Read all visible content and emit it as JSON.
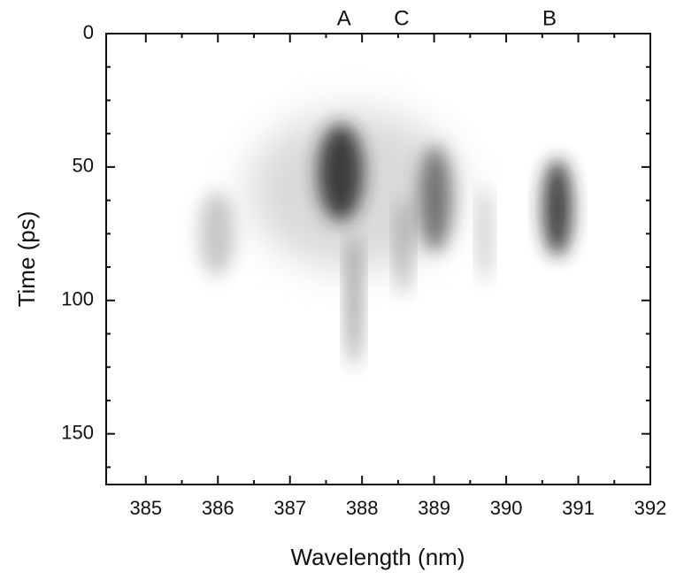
{
  "chart_data": {
    "type": "image",
    "x_label": "Wavelength (nm)",
    "y_label": "Time (ps)",
    "xlim": [
      384.45,
      392
    ],
    "ylim": [
      169,
      0
    ],
    "xticks": [
      385,
      386,
      387,
      388,
      389,
      390,
      391,
      392
    ],
    "yticks": [
      0,
      50,
      100,
      150
    ],
    "annotations": [
      {
        "text": "A",
        "x": 387.75
      },
      {
        "text": "C",
        "x": 388.55
      },
      {
        "text": "B",
        "x": 390.6
      }
    ]
  }
}
